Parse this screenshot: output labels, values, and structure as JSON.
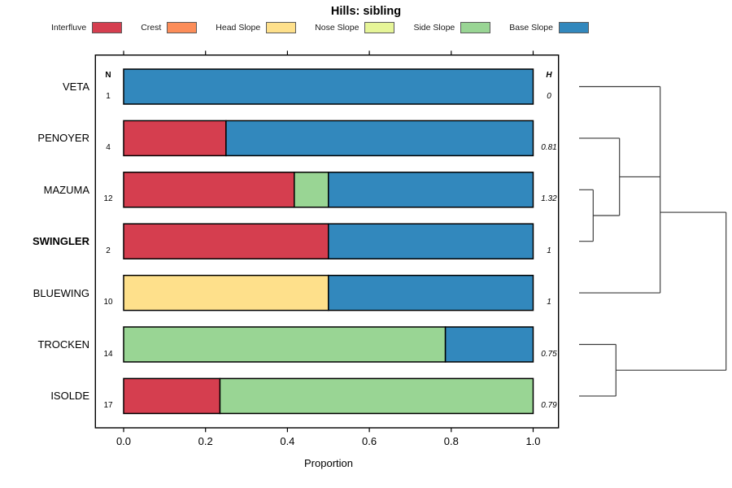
{
  "title": "Hills: sibling",
  "legend": [
    {
      "label": "Interfluve",
      "color": "#D53E4F"
    },
    {
      "label": "Crest",
      "color": "#FC8D59"
    },
    {
      "label": "Head Slope",
      "color": "#FEE08B"
    },
    {
      "label": "Nose Slope",
      "color": "#E6F598"
    },
    {
      "label": "Side Slope",
      "color": "#99D594"
    },
    {
      "label": "Base Slope",
      "color": "#3288BD"
    }
  ],
  "chart_data": {
    "type": "bar",
    "subtype": "horizontal-stacked-proportion-with-dendrogram",
    "title": "Hills: sibling",
    "xlabel": "Proportion",
    "xlim": [
      0,
      1
    ],
    "xticks": [
      "0.0",
      "0.2",
      "0.4",
      "0.6",
      "0.8",
      "1.0"
    ],
    "grid": false,
    "legend_position": "top",
    "n_header": "N",
    "h_header": "H",
    "rows": [
      {
        "label": "VETA",
        "bold": false,
        "n": "1",
        "h": "0",
        "segments": [
          {
            "class": "Base Slope",
            "value": 1.0
          }
        ]
      },
      {
        "label": "PENOYER",
        "bold": false,
        "n": "4",
        "h": "0.81",
        "segments": [
          {
            "class": "Interfluve",
            "value": 0.25
          },
          {
            "class": "Base Slope",
            "value": 0.75
          }
        ]
      },
      {
        "label": "MAZUMA",
        "bold": false,
        "n": "12",
        "h": "1.32",
        "segments": [
          {
            "class": "Interfluve",
            "value": 0.4167
          },
          {
            "class": "Side Slope",
            "value": 0.0833
          },
          {
            "class": "Base Slope",
            "value": 0.5
          }
        ]
      },
      {
        "label": "SWINGLER",
        "bold": true,
        "n": "2",
        "h": "1",
        "segments": [
          {
            "class": "Interfluve",
            "value": 0.5
          },
          {
            "class": "Base Slope",
            "value": 0.5
          }
        ]
      },
      {
        "label": "BLUEWING",
        "bold": false,
        "n": "10",
        "h": "1",
        "segments": [
          {
            "class": "Head Slope",
            "value": 0.5
          },
          {
            "class": "Base Slope",
            "value": 0.5
          }
        ]
      },
      {
        "label": "TROCKEN",
        "bold": false,
        "n": "14",
        "h": "0.75",
        "segments": [
          {
            "class": "Side Slope",
            "value": 0.7857
          },
          {
            "class": "Base Slope",
            "value": 0.2143
          }
        ]
      },
      {
        "label": "ISOLDE",
        "bold": false,
        "n": "17",
        "h": "0.79",
        "segments": [
          {
            "class": "Interfluve",
            "value": 0.2353
          },
          {
            "class": "Side Slope",
            "value": 0.7647
          }
        ]
      }
    ],
    "dendrogram": {
      "note": "x in page px, y in row units (0=VETA .. 6=ISOLDE)",
      "segments": [
        [
          712.0,
          0,
          811.7,
          0
        ],
        [
          712.0,
          1,
          761.7,
          1
        ],
        [
          712.0,
          2,
          729.3,
          2
        ],
        [
          712.0,
          3,
          729.3,
          3
        ],
        [
          729.3,
          2,
          729.3,
          3
        ],
        [
          729.3,
          2.5,
          761.7,
          2.5
        ],
        [
          761.7,
          1,
          761.7,
          2.5
        ],
        [
          761.7,
          1.75,
          811.7,
          1.75
        ],
        [
          811.7,
          0,
          811.7,
          4
        ],
        [
          712.0,
          4,
          811.7,
          4
        ],
        [
          811.7,
          2.4375,
          892.7,
          2.4375
        ],
        [
          892.7,
          2.4375,
          892.7,
          5.5
        ],
        [
          712.0,
          5,
          757.3,
          5
        ],
        [
          712.0,
          6,
          757.3,
          6
        ],
        [
          757.3,
          5,
          757.3,
          6
        ],
        [
          757.3,
          5.5,
          892.7,
          5.5
        ]
      ]
    }
  }
}
